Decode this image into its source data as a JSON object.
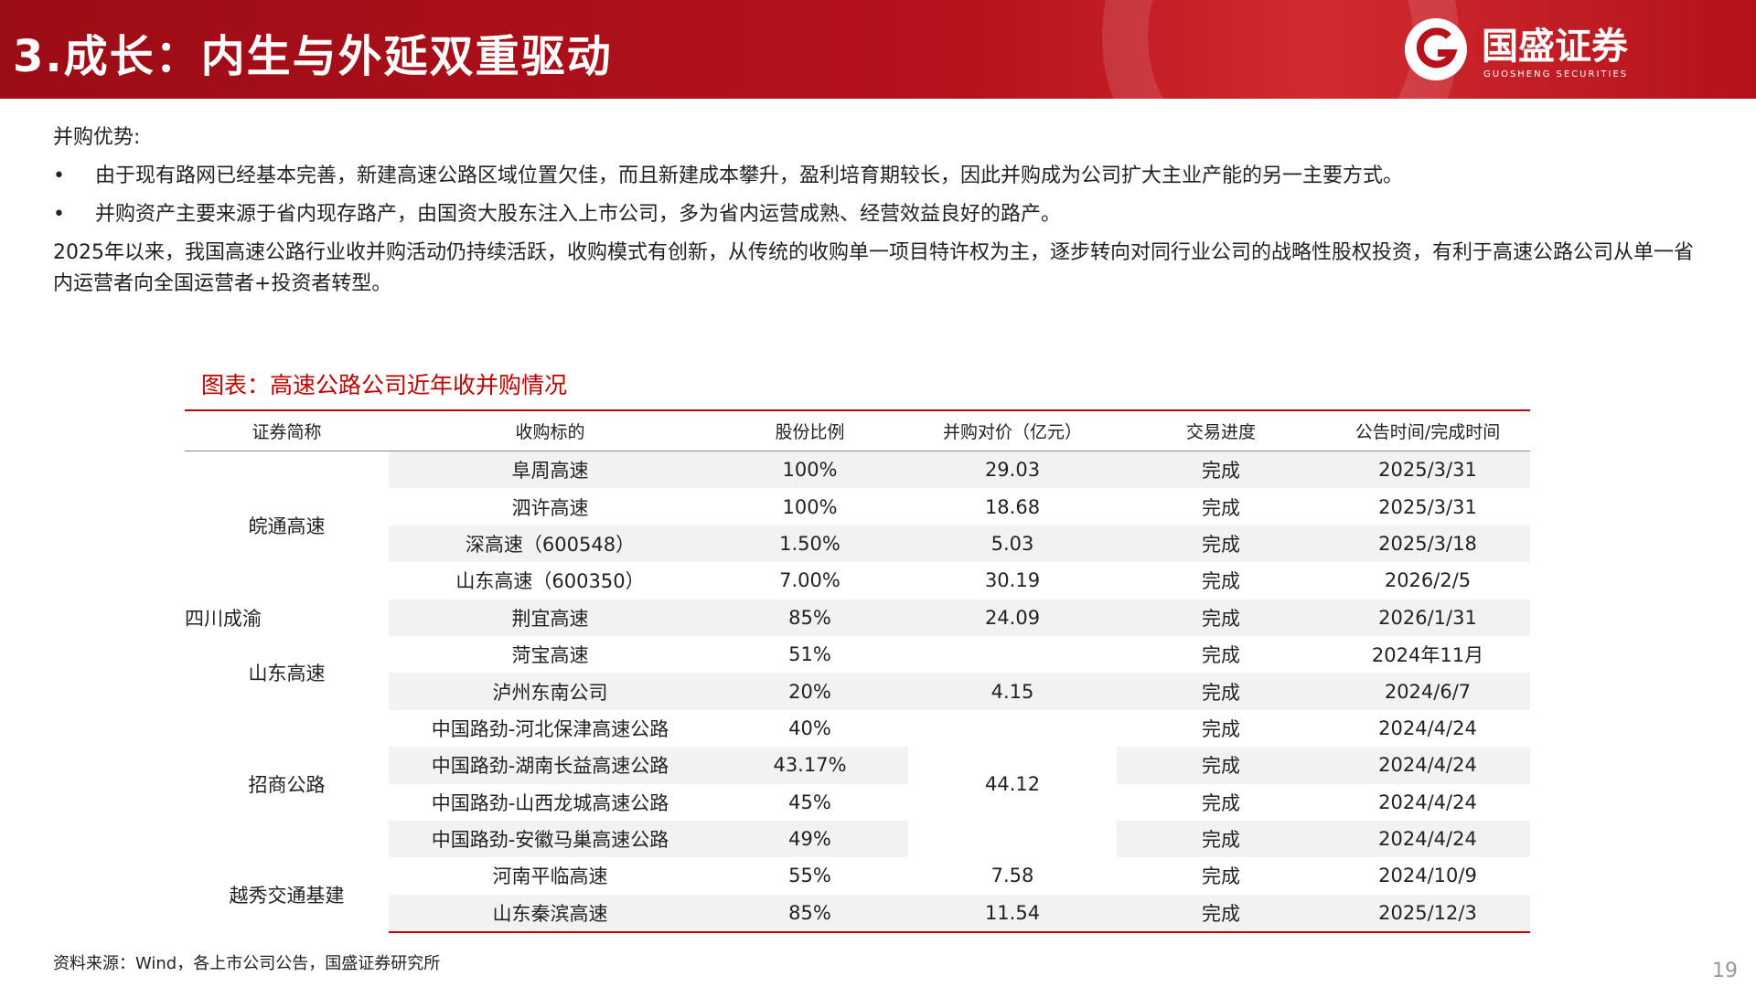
{
  "header": {
    "title": "3.成长：内生与外延双重驱动",
    "logo_name": "国盛证券",
    "logo_subtitle": "GUOSHENG SECURITIES"
  },
  "body": {
    "heading": "并购优势:",
    "bullets": [
      "由于现有路网已经基本完善，新建高速公路区域位置欠佳，而且新建成本攀升，盈利培育期较长，因此并购成为公司扩大主业产能的另一主要方式。",
      "并购资产主要来源于省内现存路产，由国资大股东注入上市公司，多为省内运营成熟、经营效益良好的路产。"
    ],
    "paragraph": "2025年以来，我国高速公路行业收并购活动仍持续活跃，收购模式有创新，从传统的收购单一项目特许权为主，逐步转向对同行业公司的战略性股权投资，有利于高速公路公司从单一省内运营者向全国运营者+投资者转型。"
  },
  "table": {
    "caption": "图表：高速公路公司近年收并购情况",
    "headers": [
      "证券简称",
      "收购标的",
      "股份比例",
      "并购对价（亿元）",
      "交易进度",
      "公告时间/完成时间"
    ],
    "groups": [
      {
        "company": "皖通高速",
        "items": [
          {
            "target": "阜周高速",
            "ratio": "100%",
            "price": "29.03",
            "status": "完成",
            "date": "2025/3/31"
          },
          {
            "target": "泗许高速",
            "ratio": "100%",
            "price": "18.68",
            "status": "完成",
            "date": "2025/3/31"
          },
          {
            "target": "深高速（600548）",
            "ratio": "1.50%",
            "price": "5.03",
            "status": "完成",
            "date": "2025/3/18"
          },
          {
            "target": "山东高速（600350）",
            "ratio": "7.00%",
            "price": "30.19",
            "status": "完成",
            "date": "2026/2/5"
          }
        ]
      },
      {
        "company": "四川成渝",
        "items": [
          {
            "target": "荆宜高速",
            "ratio": "85%",
            "price": "24.09",
            "status": "完成",
            "date": "2026/1/31"
          }
        ]
      },
      {
        "company": "山东高速",
        "items": [
          {
            "target": "菏宝高速",
            "ratio": "51%",
            "status": "完成",
            "date": "2024年11月"
          },
          {
            "target": "泸州东南公司",
            "ratio": "20%",
            "price": "4.15",
            "status": "完成",
            "date": "2024/6/7"
          }
        ]
      },
      {
        "company": "招商公路",
        "price": "44.12",
        "items": [
          {
            "target": "中国路劲-河北保津高速公路",
            "ratio": "40%",
            "status": "完成",
            "date": "2024/4/24"
          },
          {
            "target": "中国路劲-湖南长益高速公路",
            "ratio": "43.17%",
            "status": "完成",
            "date": "2024/4/24"
          },
          {
            "target": "中国路劲-山西龙城高速公路",
            "ratio": "45%",
            "status": "完成",
            "date": "2024/4/24"
          },
          {
            "target": "中国路劲-安徽马巢高速公路",
            "ratio": "49%",
            "status": "完成",
            "date": "2024/4/24"
          }
        ]
      },
      {
        "company": "越秀交通基建",
        "items": [
          {
            "target": "河南平临高速",
            "ratio": "55%",
            "price": "7.58",
            "status": "完成",
            "date": "2024/10/9"
          },
          {
            "target": "山东秦滨高速",
            "ratio": "85%",
            "price": "11.54",
            "status": "完成",
            "date": "2025/12/3"
          }
        ]
      }
    ],
    "source": "资料来源：Wind，各上市公司公告，国盛证券研究所"
  },
  "footer": {
    "page": "19"
  }
}
